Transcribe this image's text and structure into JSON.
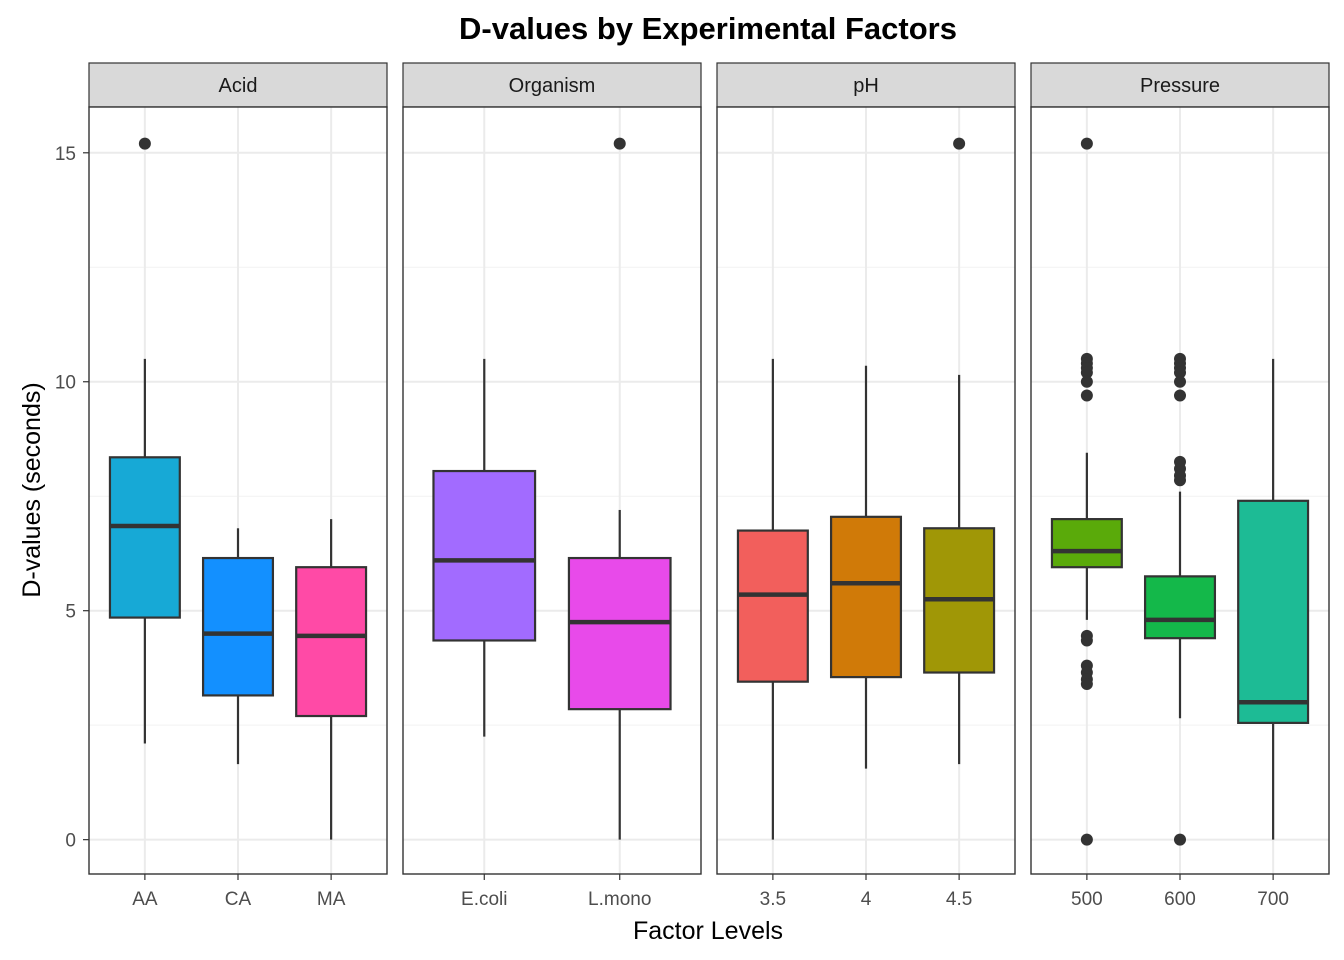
{
  "chart_data": {
    "type": "boxplot",
    "title": "D-values by Experimental Factors",
    "xlabel": "Factor Levels",
    "ylabel": "D-values (seconds)",
    "ylim": [
      -0.75,
      16
    ],
    "yticks": [
      0,
      5,
      10,
      15
    ],
    "grid": true,
    "facets": [
      {
        "name": "Acid",
        "groups": [
          {
            "level": "AA",
            "color": "#17A9D6",
            "q1": 4.85,
            "median": 6.85,
            "q3": 8.35,
            "whisker_low": 2.1,
            "whisker_high": 10.5,
            "outliers": [
              15.2
            ]
          },
          {
            "level": "CA",
            "color": "#1390FF",
            "q1": 3.15,
            "median": 4.5,
            "q3": 6.15,
            "whisker_low": 1.65,
            "whisker_high": 6.8,
            "outliers": []
          },
          {
            "level": "MA",
            "color": "#FF4AA6",
            "q1": 2.7,
            "median": 4.45,
            "q3": 5.95,
            "whisker_low": 0.0,
            "whisker_high": 7.0,
            "outliers": []
          }
        ]
      },
      {
        "name": "Organism",
        "groups": [
          {
            "level": "E.coli",
            "color": "#A26BFF",
            "q1": 4.35,
            "median": 6.1,
            "q3": 8.05,
            "whisker_low": 2.25,
            "whisker_high": 10.5,
            "outliers": []
          },
          {
            "level": "L.mono",
            "color": "#E84AEA",
            "q1": 2.85,
            "median": 4.75,
            "q3": 6.15,
            "whisker_low": 0.0,
            "whisker_high": 7.2,
            "outliers": [
              15.2
            ]
          }
        ]
      },
      {
        "name": "pH",
        "groups": [
          {
            "level": "3.5",
            "color": "#F25F5C",
            "q1": 3.45,
            "median": 5.35,
            "q3": 6.75,
            "whisker_low": 0.0,
            "whisker_high": 10.5,
            "outliers": []
          },
          {
            "level": "4",
            "color": "#D07A08",
            "q1": 3.55,
            "median": 5.6,
            "q3": 7.05,
            "whisker_low": 1.55,
            "whisker_high": 10.35,
            "outliers": []
          },
          {
            "level": "4.5",
            "color": "#A09706",
            "q1": 3.65,
            "median": 5.25,
            "q3": 6.8,
            "whisker_low": 1.65,
            "whisker_high": 10.15,
            "outliers": [
              15.2
            ]
          }
        ]
      },
      {
        "name": "Pressure",
        "groups": [
          {
            "level": "500",
            "color": "#5AAA0A",
            "q1": 5.95,
            "median": 6.3,
            "q3": 7.0,
            "whisker_low": 4.8,
            "whisker_high": 8.45,
            "outliers": [
              15.2,
              10.5,
              10.4,
              10.3,
              10.2,
              10.0,
              9.7,
              4.45,
              4.35,
              3.8,
              3.65,
              3.5,
              3.4,
              0.0
            ]
          },
          {
            "level": "600",
            "color": "#14B84A",
            "q1": 4.4,
            "median": 4.8,
            "q3": 5.75,
            "whisker_low": 2.65,
            "whisker_high": 7.6,
            "outliers": [
              10.5,
              10.4,
              10.3,
              10.2,
              10.0,
              9.7,
              8.25,
              8.1,
              7.95,
              7.85,
              0.0
            ]
          },
          {
            "level": "700",
            "color": "#1DBB95",
            "q1": 2.55,
            "median": 3.0,
            "q3": 7.4,
            "whisker_low": 0.0,
            "whisker_high": 10.5,
            "outliers": []
          }
        ]
      }
    ]
  }
}
